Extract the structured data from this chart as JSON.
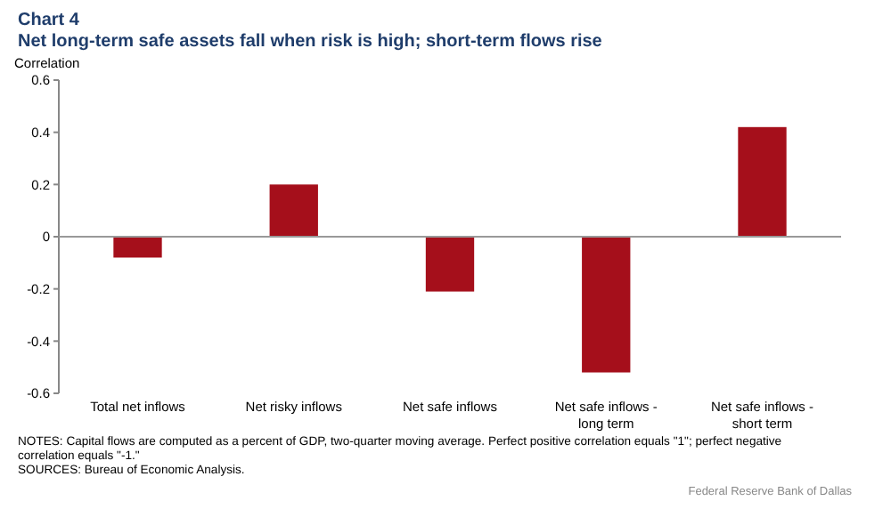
{
  "chart_data": {
    "type": "bar",
    "title": "Chart 4",
    "subtitle": "Net long-term safe assets fall when risk is high; short-term flows rise",
    "ylabel": "Correlation",
    "categories": [
      "Total net inflows",
      "Net risky inflows",
      "Net safe inflows",
      "Net safe inflows - long term",
      "Net safe inflows - short term"
    ],
    "values": [
      -0.08,
      0.2,
      -0.21,
      -0.52,
      0.42
    ],
    "color": "#a50f1b",
    "ylim": [
      -0.6,
      0.6
    ],
    "yticks": [
      -0.6,
      -0.4,
      -0.2,
      0,
      0.2,
      0.4,
      0.6
    ],
    "annotations": [
      "NOTES: Capital flows are computed as a percent of GDP, two-quarter moving average. Perfect positive correlation equals \"1\"; perfect negative correlation equals \"-1.\"",
      "SOURCES: Bureau of Economic Analysis.",
      "Federal Reserve Bank of Dallas"
    ]
  }
}
